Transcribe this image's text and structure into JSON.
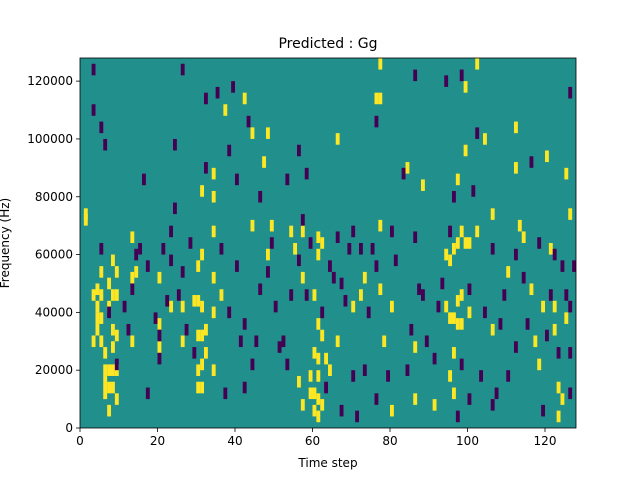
{
  "chart_data": {
    "type": "heatmap",
    "title": "Predicted : Gg",
    "xlabel": "Time step",
    "ylabel": "Frequency (Hz)",
    "xlim": [
      0,
      128
    ],
    "ylim": [
      0,
      128000
    ],
    "x_ticks": [
      0,
      20,
      40,
      60,
      80,
      100,
      120
    ],
    "x_tick_labels": [
      "0",
      "20",
      "40",
      "60",
      "80",
      "100",
      "120"
    ],
    "y_ticks": [
      0,
      20000,
      40000,
      60000,
      80000,
      100000,
      120000
    ],
    "y_tick_labels": [
      "0",
      "20000",
      "40000",
      "60000",
      "80000",
      "100000",
      "120000"
    ],
    "colormap": {
      "low": "#440154",
      "mid": "#21908d",
      "high": "#fde725"
    },
    "background_value": 0,
    "cell_width_steps": 1,
    "cell_height_hz": 4000,
    "high_cells": [
      [
        1,
        70000
      ],
      [
        1,
        72000
      ],
      [
        3,
        44000
      ],
      [
        3,
        28000
      ],
      [
        4,
        46000
      ],
      [
        4,
        40000
      ],
      [
        4,
        36000
      ],
      [
        4,
        32000
      ],
      [
        5,
        52000
      ],
      [
        5,
        44000
      ],
      [
        5,
        36000
      ],
      [
        5,
        28000
      ],
      [
        6,
        24000
      ],
      [
        6,
        18000
      ],
      [
        6,
        14000
      ],
      [
        6,
        10000
      ],
      [
        7,
        48000
      ],
      [
        7,
        40000
      ],
      [
        7,
        18000
      ],
      [
        7,
        12000
      ],
      [
        7,
        4000
      ],
      [
        8,
        56000
      ],
      [
        8,
        44000
      ],
      [
        8,
        32000
      ],
      [
        8,
        26000
      ],
      [
        8,
        18000
      ],
      [
        8,
        12000
      ],
      [
        9,
        52000
      ],
      [
        9,
        44000
      ],
      [
        9,
        30000
      ],
      [
        9,
        18000
      ],
      [
        9,
        8000
      ],
      [
        13,
        50000
      ],
      [
        13,
        64000
      ],
      [
        13,
        28000
      ],
      [
        20,
        34000
      ],
      [
        20,
        26000
      ],
      [
        20,
        50000
      ],
      [
        26,
        40000
      ],
      [
        26,
        28000
      ],
      [
        30,
        54000
      ],
      [
        30,
        42000
      ],
      [
        30,
        30000
      ],
      [
        30,
        18000
      ],
      [
        30,
        12000
      ],
      [
        31,
        80000
      ],
      [
        31,
        58000
      ],
      [
        31,
        40000
      ],
      [
        31,
        30000
      ],
      [
        31,
        20000
      ],
      [
        31,
        12000
      ],
      [
        32,
        32000
      ],
      [
        32,
        24000
      ],
      [
        34,
        86000
      ],
      [
        34,
        78000
      ],
      [
        34,
        66000
      ],
      [
        34,
        50000
      ],
      [
        34,
        38000
      ],
      [
        34,
        18000
      ],
      [
        36,
        44000
      ],
      [
        37,
        108000
      ],
      [
        42,
        112000
      ],
      [
        44,
        100000
      ],
      [
        47,
        90000
      ],
      [
        48,
        100000
      ],
      [
        48,
        58000
      ],
      [
        49,
        68000
      ],
      [
        54,
        66000
      ],
      [
        55,
        60000
      ],
      [
        56,
        14000
      ],
      [
        57,
        66000
      ],
      [
        57,
        50000
      ],
      [
        57,
        6000
      ],
      [
        59,
        16000
      ],
      [
        59,
        10000
      ],
      [
        60,
        44000
      ],
      [
        60,
        24000
      ],
      [
        60,
        10000
      ],
      [
        60,
        4000
      ],
      [
        61,
        64000
      ],
      [
        61,
        58000
      ],
      [
        61,
        34000
      ],
      [
        61,
        22000
      ],
      [
        61,
        16000
      ],
      [
        61,
        8000
      ],
      [
        61,
        2000
      ],
      [
        62,
        62000
      ],
      [
        62,
        30000
      ],
      [
        62,
        6000
      ],
      [
        63,
        22000
      ],
      [
        64,
        18000
      ],
      [
        66,
        28000
      ],
      [
        70,
        40000
      ],
      [
        73,
        50000
      ],
      [
        76,
        112000
      ],
      [
        77,
        124000
      ],
      [
        77,
        112000
      ],
      [
        77,
        68000
      ],
      [
        77,
        46000
      ],
      [
        78,
        28000
      ],
      [
        80,
        40000
      ],
      [
        80,
        4000
      ],
      [
        86,
        8000
      ],
      [
        86,
        26000
      ],
      [
        91,
        6000
      ],
      [
        94,
        58000
      ],
      [
        94,
        40000
      ],
      [
        95,
        56000
      ],
      [
        95,
        36000
      ],
      [
        95,
        16000
      ],
      [
        96,
        60000
      ],
      [
        96,
        36000
      ],
      [
        96,
        24000
      ],
      [
        96,
        10000
      ],
      [
        97,
        84000
      ],
      [
        97,
        62000
      ],
      [
        97,
        42000
      ],
      [
        97,
        34000
      ],
      [
        98,
        66000
      ],
      [
        98,
        44000
      ],
      [
        98,
        34000
      ],
      [
        99,
        116000
      ],
      [
        99,
        94000
      ],
      [
        99,
        62000
      ],
      [
        100,
        62000
      ],
      [
        100,
        38000
      ],
      [
        102,
        124000
      ],
      [
        102,
        66000
      ],
      [
        106,
        72000
      ],
      [
        106,
        32000
      ],
      [
        110,
        52000
      ],
      [
        112,
        102000
      ],
      [
        112,
        88000
      ],
      [
        113,
        68000
      ],
      [
        114,
        64000
      ],
      [
        117,
        28000
      ],
      [
        118,
        20000
      ],
      [
        119,
        40000
      ],
      [
        120,
        92000
      ],
      [
        122,
        40000
      ],
      [
        122,
        32000
      ],
      [
        123,
        12000
      ],
      [
        123,
        2000
      ],
      [
        124,
        8000
      ],
      [
        125,
        86000
      ],
      [
        125,
        36000
      ],
      [
        126,
        72000
      ],
      [
        14,
        52000
      ],
      [
        23,
        40000
      ],
      [
        29,
        42000
      ],
      [
        44,
        68000
      ],
      [
        66,
        98000
      ],
      [
        72,
        44000
      ],
      [
        84,
        88000
      ],
      [
        88,
        82000
      ],
      [
        116,
        46000
      ],
      [
        121,
        60000
      ],
      [
        104,
        98000
      ]
    ],
    "low_cells": [
      [
        3,
        108000
      ],
      [
        3,
        122000
      ],
      [
        5,
        102000
      ],
      [
        6,
        96000
      ],
      [
        5,
        60000
      ],
      [
        7,
        38000
      ],
      [
        12,
        32000
      ],
      [
        13,
        46000
      ],
      [
        14,
        58000
      ],
      [
        16,
        84000
      ],
      [
        17,
        54000
      ],
      [
        15,
        60000
      ],
      [
        19,
        36000
      ],
      [
        20,
        30000
      ],
      [
        20,
        22000
      ],
      [
        21,
        60000
      ],
      [
        22,
        42000
      ],
      [
        23,
        66000
      ],
      [
        23,
        56000
      ],
      [
        24,
        96000
      ],
      [
        24,
        74000
      ],
      [
        25,
        44000
      ],
      [
        26,
        52000
      ],
      [
        26,
        122000
      ],
      [
        28,
        62000
      ],
      [
        29,
        24000
      ],
      [
        32,
        88000
      ],
      [
        32,
        112000
      ],
      [
        36,
        60000
      ],
      [
        37,
        10000
      ],
      [
        38,
        94000
      ],
      [
        38,
        38000
      ],
      [
        39,
        116000
      ],
      [
        40,
        84000
      ],
      [
        40,
        54000
      ],
      [
        41,
        28000
      ],
      [
        42,
        12000
      ],
      [
        42,
        34000
      ],
      [
        43,
        104000
      ],
      [
        44,
        20000
      ],
      [
        46,
        78000
      ],
      [
        46,
        46000
      ],
      [
        49,
        62000
      ],
      [
        50,
        40000
      ],
      [
        51,
        26000
      ],
      [
        52,
        28000
      ],
      [
        53,
        84000
      ],
      [
        54,
        44000
      ],
      [
        56,
        94000
      ],
      [
        56,
        56000
      ],
      [
        57,
        70000
      ],
      [
        58,
        86000
      ],
      [
        58,
        44000
      ],
      [
        59,
        62000
      ],
      [
        62,
        38000
      ],
      [
        63,
        12000
      ],
      [
        64,
        54000
      ],
      [
        65,
        50000
      ],
      [
        66,
        64000
      ],
      [
        67,
        48000
      ],
      [
        68,
        42000
      ],
      [
        69,
        60000
      ],
      [
        70,
        66000
      ],
      [
        70,
        16000
      ],
      [
        71,
        2000
      ],
      [
        72,
        60000
      ],
      [
        73,
        18000
      ],
      [
        74,
        38000
      ],
      [
        75,
        60000
      ],
      [
        76,
        54000
      ],
      [
        76,
        8000
      ],
      [
        76,
        104000
      ],
      [
        80,
        66000
      ],
      [
        81,
        56000
      ],
      [
        83,
        86000
      ],
      [
        84,
        18000
      ],
      [
        85,
        32000
      ],
      [
        86,
        120000
      ],
      [
        86,
        64000
      ],
      [
        87,
        46000
      ],
      [
        89,
        28000
      ],
      [
        91,
        22000
      ],
      [
        92,
        40000
      ],
      [
        93,
        48000
      ],
      [
        95,
        66000
      ],
      [
        96,
        78000
      ],
      [
        97,
        2000
      ],
      [
        98,
        20000
      ],
      [
        98,
        120000
      ],
      [
        100,
        46000
      ],
      [
        100,
        8000
      ],
      [
        102,
        100000
      ],
      [
        103,
        16000
      ],
      [
        104,
        38000
      ],
      [
        106,
        60000
      ],
      [
        106,
        6000
      ],
      [
        107,
        10000
      ],
      [
        108,
        34000
      ],
      [
        109,
        44000
      ],
      [
        110,
        16000
      ],
      [
        112,
        26000
      ],
      [
        112,
        58000
      ],
      [
        114,
        50000
      ],
      [
        116,
        90000
      ],
      [
        118,
        62000
      ],
      [
        119,
        4000
      ],
      [
        120,
        30000
      ],
      [
        121,
        44000
      ],
      [
        122,
        58000
      ],
      [
        123,
        24000
      ],
      [
        124,
        54000
      ],
      [
        125,
        44000
      ],
      [
        126,
        40000
      ],
      [
        126,
        24000
      ],
      [
        126,
        10000
      ],
      [
        126,
        114000
      ],
      [
        127,
        54000
      ],
      [
        9,
        20000
      ],
      [
        11,
        40000
      ],
      [
        17,
        10000
      ],
      [
        27,
        32000
      ],
      [
        35,
        114000
      ],
      [
        45,
        28000
      ],
      [
        48,
        52000
      ],
      [
        53,
        20000
      ],
      [
        67,
        4000
      ],
      [
        79,
        16000
      ],
      [
        88,
        44000
      ],
      [
        94,
        118000
      ],
      [
        101,
        80000
      ],
      [
        115,
        34000
      ]
    ]
  }
}
